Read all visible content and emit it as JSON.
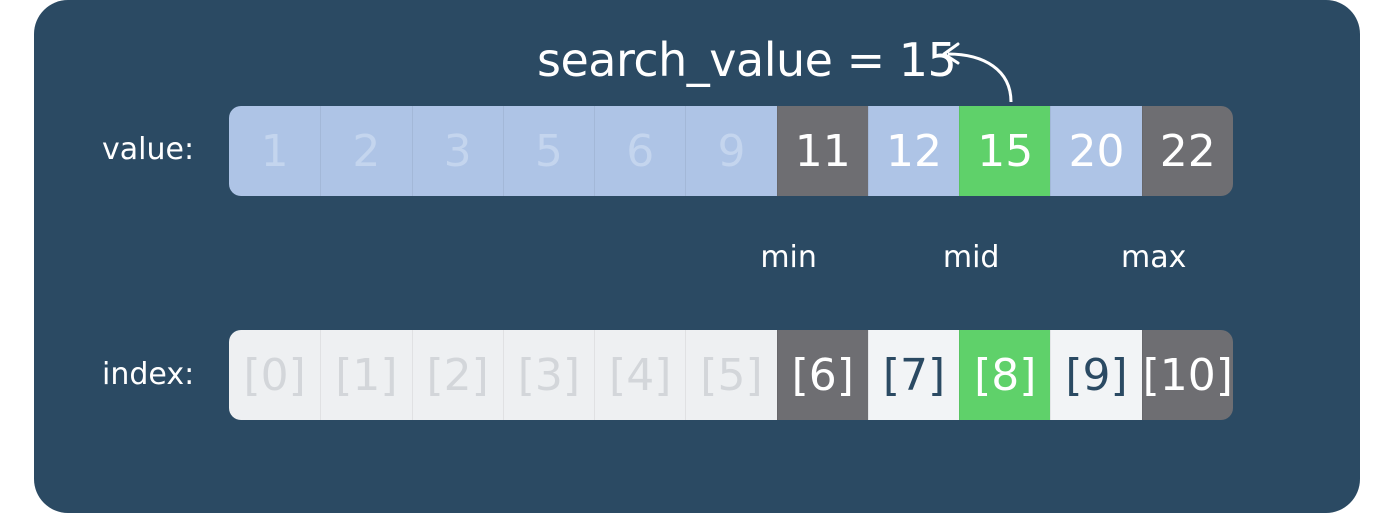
{
  "title": "search_value = 15",
  "labels": {
    "value": "value:",
    "index": "index:"
  },
  "values": [
    "1",
    "2",
    "3",
    "5",
    "6",
    "9",
    "11",
    "12",
    "15",
    "20",
    "22"
  ],
  "indices": [
    "[0]",
    "[1]",
    "[2]",
    "[3]",
    "[4]",
    "[5]",
    "[6]",
    "[7]",
    "[8]",
    "[9]",
    "[10]"
  ],
  "cell_states": [
    "excluded",
    "excluded",
    "excluded",
    "excluded",
    "excluded",
    "excluded",
    "boundary",
    "range",
    "target",
    "range",
    "boundary"
  ],
  "pointers": [
    {
      "text": "min",
      "index": 6
    },
    {
      "text": "mid",
      "index": 8
    },
    {
      "text": "max",
      "index": 10
    }
  ],
  "colors": {
    "panel": "#2b4a63",
    "excluded_value": "#aec4e6",
    "boundary": "#6e6e72",
    "target": "#5fd16a",
    "excluded_index": "#eef0f2"
  }
}
